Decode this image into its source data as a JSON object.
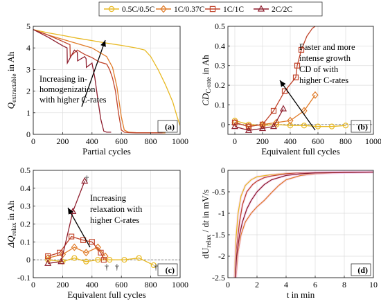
{
  "legend": {
    "entries": [
      {
        "label": "0.5C/0.5C",
        "color": "#E8B923",
        "marker": "circle"
      },
      {
        "label": "1C/0.37C",
        "color": "#E07B28",
        "marker": "diamond"
      },
      {
        "label": "1C/1C",
        "color": "#C0432A",
        "marker": "square"
      },
      {
        "label": "2C/2C",
        "color": "#8E1E2E",
        "marker": "triangle"
      }
    ],
    "placement": "top-center"
  },
  "chart_data": [
    {
      "type": "line",
      "panel_label": "(a)",
      "xlabel": "Partial cycles",
      "ylabel_main": "Q",
      "ylabel_sub": "extractable",
      "ylabel_unit": " in Ah",
      "xlim": [
        0,
        1000
      ],
      "ylim": [
        0,
        5
      ],
      "xticks": [
        0,
        200,
        400,
        600,
        800,
        1000
      ],
      "yticks": [
        0,
        1,
        2,
        3,
        4,
        5
      ],
      "grid": true,
      "annotation": [
        "Increasing in-",
        "homogenization",
        "with higher C-rates"
      ],
      "series": [
        {
          "name": "0.5C/0.5C",
          "color": "#E8B923",
          "x": [
            0,
            100,
            200,
            300,
            400,
            500,
            600,
            700,
            760,
            800,
            850,
            900,
            950,
            980,
            1000
          ],
          "y": [
            4.85,
            4.7,
            4.58,
            4.45,
            4.34,
            4.22,
            4.12,
            4.0,
            3.9,
            3.6,
            3.0,
            2.3,
            1.5,
            0.8,
            0.4
          ]
        },
        {
          "name": "1C/0.37C",
          "color": "#E07B28",
          "x": [
            0,
            100,
            200,
            300,
            400,
            500,
            540,
            570,
            600,
            620,
            650,
            700,
            800,
            900
          ],
          "y": [
            4.85,
            4.6,
            4.4,
            4.2,
            4.0,
            3.6,
            3.1,
            2.2,
            0.8,
            0.2,
            0.1,
            0.08,
            0.07,
            0.07
          ]
        },
        {
          "name": "1C/1C",
          "color": "#C0432A",
          "x": [
            0,
            100,
            200,
            250,
            252,
            300,
            350,
            400,
            450,
            500,
            520,
            540,
            560,
            580,
            600,
            620,
            650,
            700,
            800,
            880
          ],
          "y": [
            4.85,
            4.6,
            4.3,
            4.15,
            3.6,
            3.9,
            3.7,
            3.55,
            3.35,
            3.25,
            3.0,
            2.6,
            2.0,
            1.0,
            0.2,
            0.1,
            0.08,
            0.07,
            0.07,
            0.07
          ]
        },
        {
          "name": "2C/2C",
          "color": "#8E1E2E",
          "x": [
            0,
            100,
            150,
            200,
            230,
            232,
            280,
            300,
            302,
            350,
            360,
            362,
            400,
            420,
            440,
            460,
            480,
            500,
            530
          ],
          "y": [
            4.85,
            4.5,
            4.3,
            4.1,
            4.0,
            3.3,
            3.9,
            3.8,
            3.4,
            3.6,
            3.5,
            3.1,
            3.3,
            2.6,
            1.6,
            0.7,
            0.15,
            0.1,
            0.1
          ]
        }
      ]
    },
    {
      "type": "line",
      "panel_label": "(b)",
      "xlabel": "Equivalent full cycles",
      "ylabel_main": "CD",
      "ylabel_sub": "C-rate",
      "ylabel_unit": " in Ah",
      "xlim": [
        -50,
        1000
      ],
      "ylim": [
        -0.05,
        0.5
      ],
      "xticks": [
        0,
        200,
        400,
        600,
        800,
        1000
      ],
      "yticks": [
        0,
        0.1,
        0.2,
        0.3,
        0.4,
        0.5
      ],
      "ytick_labels": [
        "0",
        "0.1",
        "0.2",
        "0.3",
        "0.4",
        "0.5"
      ],
      "grid": true,
      "zero_line": true,
      "annotation": [
        "Faster and more",
        "intense growth",
        "CD of with",
        "higher C-rates"
      ],
      "series": [
        {
          "name": "0.5C/0.5C",
          "color": "#E8B923",
          "marker": "circle",
          "x": [
            0,
            100,
            200,
            300,
            400,
            500,
            600,
            700,
            800
          ],
          "y": [
            0.02,
            0.0,
            -0.005,
            0.0,
            -0.005,
            -0.005,
            -0.01,
            -0.01,
            -0.005
          ]
        },
        {
          "name": "1C/0.37C",
          "color": "#E07B28",
          "marker": "diamond",
          "x": [
            0,
            100,
            200,
            300,
            400,
            500,
            580
          ],
          "y": [
            0.01,
            -0.01,
            0.0,
            0.01,
            0.02,
            0.07,
            0.15
          ]
        },
        {
          "name": "1C/1C",
          "color": "#C0432A",
          "marker": "square",
          "x": [
            0,
            100,
            200,
            280,
            360,
            440,
            450,
            480,
            520,
            560,
            580
          ],
          "y": [
            0.01,
            -0.01,
            0.0,
            0.07,
            0.17,
            0.24,
            0.3,
            0.38,
            0.45,
            0.49,
            0.5
          ]
        },
        {
          "name": "2C/2C",
          "color": "#8E1E2E",
          "marker": "triangle",
          "x": [
            0,
            100,
            200,
            280,
            350
          ],
          "y": [
            -0.01,
            -0.03,
            -0.02,
            -0.01,
            0.08
          ]
        }
      ]
    },
    {
      "type": "line",
      "panel_label": "(c)",
      "xlabel": "Equivalent full cycles",
      "ylabel_main": "ΔQ",
      "ylabel_sub": "relax",
      "ylabel_unit": " in Ah",
      "xlim": [
        0,
        1000
      ],
      "ylim": [
        -0.1,
        0.5
      ],
      "xticks": [
        0,
        200,
        400,
        600,
        800,
        1000
      ],
      "yticks": [
        -0.1,
        0,
        0.1,
        0.2,
        0.3,
        0.4,
        0.5
      ],
      "ytick_labels": [
        "-0.1",
        "0",
        "0.1",
        "0.2",
        "0.3",
        "0.4",
        "0.5"
      ],
      "grid": true,
      "zero_line": true,
      "annotation": [
        "Increasing",
        "relaxation with",
        "higher C-rates"
      ],
      "daggers": [
        {
          "x": 365,
          "y": 0.455,
          "text": "†"
        },
        {
          "x": 500,
          "y": -0.04,
          "text": "†"
        },
        {
          "x": 570,
          "y": -0.04,
          "text": "†"
        },
        {
          "x": 835,
          "y": -0.04,
          "text": "†"
        }
      ],
      "series": [
        {
          "name": "0.5C/0.5C",
          "color": "#E8B923",
          "marker": "circle",
          "x": [
            100,
            200,
            280,
            360,
            440,
            520,
            620,
            720,
            820
          ],
          "y": [
            0.0,
            -0.01,
            0.01,
            -0.01,
            0.0,
            0.0,
            0.0,
            0.01,
            -0.03
          ]
        },
        {
          "name": "1C/0.37C",
          "color": "#E07B28",
          "marker": "diamond",
          "x": [
            100,
            200,
            280,
            360,
            440,
            490
          ],
          "y": [
            0.01,
            0.03,
            0.07,
            0.04,
            0.07,
            0.02
          ]
        },
        {
          "name": "1C/1C",
          "color": "#C0432A",
          "marker": "square",
          "x": [
            100,
            180,
            260,
            340,
            400,
            460,
            480
          ],
          "y": [
            0.02,
            0.04,
            0.13,
            0.11,
            0.1,
            0.04,
            0.0
          ]
        },
        {
          "name": "2C/2C",
          "color": "#8E1E2E",
          "marker": "triangle",
          "x": [
            100,
            190,
            270,
            350
          ],
          "y": [
            -0.02,
            -0.01,
            0.27,
            0.44
          ]
        }
      ]
    },
    {
      "type": "line",
      "panel_label": "(d)",
      "xlabel": "t in min",
      "ylabel_parts": [
        "dU",
        "relax",
        " / d",
        "t",
        " in mV/s"
      ],
      "xlim": [
        0,
        10
      ],
      "ylim": [
        -2.5,
        0
      ],
      "xticks": [
        0,
        2,
        4,
        6,
        8,
        10
      ],
      "yticks": [
        -2.5,
        -2,
        -1.5,
        -1,
        -0.5,
        0
      ],
      "ytick_labels": [
        "-2.5",
        "-2",
        "-1.5",
        "-1",
        "-0.5",
        "0"
      ],
      "grid": true,
      "series": [
        {
          "name": "0.5C/0.5C",
          "color": "#E8B923",
          "x": [
            0.45,
            0.55,
            0.7,
            0.9,
            1.2,
            1.6,
            2.0,
            3.0,
            4.0,
            6.0,
            8.0,
            10.0
          ],
          "y": [
            -2.5,
            -1.6,
            -1.0,
            -0.6,
            -0.35,
            -0.22,
            -0.15,
            -0.1,
            -0.07,
            -0.05,
            -0.04,
            -0.04
          ]
        },
        {
          "name": "1C/0.37C",
          "color": "#E07B28",
          "x": [
            0.55,
            0.7,
            0.9,
            1.2,
            1.6,
            2.0,
            2.5,
            3.0,
            3.5,
            4.0,
            5.0,
            6.0,
            8.0,
            10.0
          ],
          "y": [
            -2.5,
            -1.9,
            -1.5,
            -1.2,
            -1.0,
            -0.85,
            -0.7,
            -0.52,
            -0.35,
            -0.22,
            -0.12,
            -0.08,
            -0.05,
            -0.04
          ]
        },
        {
          "name": "1C/1C",
          "color": "#C0432A",
          "x": [
            0.5,
            0.6,
            0.8,
            1.0,
            1.3,
            1.7,
            2.0,
            2.5,
            3.0,
            4.0,
            5.0,
            6.0,
            8.0,
            10.0
          ],
          "y": [
            -2.5,
            -1.8,
            -1.2,
            -0.8,
            -0.5,
            -0.33,
            -0.25,
            -0.17,
            -0.13,
            -0.08,
            -0.06,
            -0.05,
            -0.04,
            -0.04
          ]
        },
        {
          "name": "2C/2C",
          "color": "#8E1E2E",
          "x": [
            0.5,
            0.6,
            0.8,
            1.0,
            1.3,
            1.6,
            2.0,
            2.5,
            3.0,
            4.0,
            5.0,
            6.0,
            8.0,
            10.0
          ],
          "y": [
            -2.5,
            -2.0,
            -1.5,
            -1.2,
            -0.9,
            -0.7,
            -0.5,
            -0.33,
            -0.22,
            -0.12,
            -0.08,
            -0.06,
            -0.05,
            -0.04
          ]
        }
      ]
    }
  ]
}
